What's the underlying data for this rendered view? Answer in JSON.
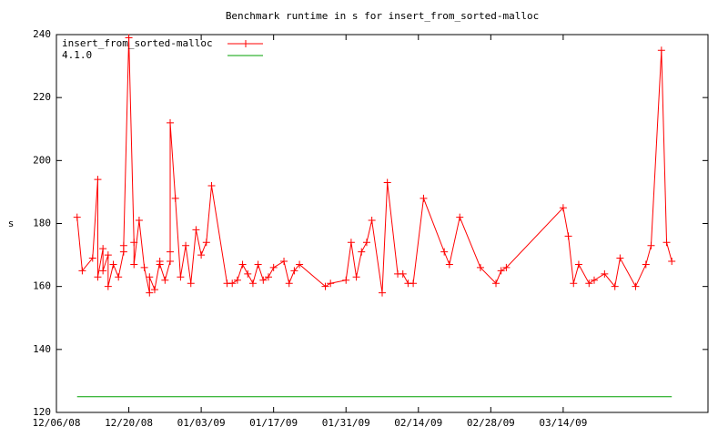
{
  "chart_data": {
    "type": "line",
    "title": "Benchmark runtime in s for insert_from_sorted-malloc",
    "y_label": "s",
    "x": [
      "2008-12-10",
      "2008-12-11",
      "2008-12-13",
      "2008-12-14",
      "2008-12-14",
      "2008-12-15",
      "2008-12-15",
      "2008-12-16",
      "2008-12-16",
      "2008-12-17",
      "2008-12-18",
      "2008-12-19",
      "2008-12-19",
      "2008-12-20",
      "2008-12-21",
      "2008-12-21",
      "2008-12-22",
      "2008-12-23",
      "2008-12-24",
      "2008-12-24",
      "2008-12-25",
      "2008-12-26",
      "2008-12-26",
      "2008-12-27",
      "2008-12-28",
      "2008-12-28",
      "2008-12-28",
      "2008-12-29",
      "2008-12-30",
      "2008-12-31",
      "2009-01-01",
      "2009-01-02",
      "2009-01-03",
      "2009-01-04",
      "2009-01-05",
      "2009-01-08",
      "2009-01-09",
      "2009-01-10",
      "2009-01-11",
      "2009-01-12",
      "2009-01-13",
      "2009-01-14",
      "2009-01-15",
      "2009-01-16",
      "2009-01-17",
      "2009-01-19",
      "2009-01-20",
      "2009-01-21",
      "2009-01-22",
      "2009-01-27",
      "2009-01-28",
      "2009-01-31",
      "2009-02-01",
      "2009-02-02",
      "2009-02-03",
      "2009-02-04",
      "2009-02-05",
      "2009-02-07",
      "2009-02-08",
      "2009-02-10",
      "2009-02-11",
      "2009-02-12",
      "2009-02-13",
      "2009-02-15",
      "2009-02-19",
      "2009-02-20",
      "2009-02-22",
      "2009-02-26",
      "2009-03-01",
      "2009-03-02",
      "2009-03-03",
      "2009-03-14",
      "2009-03-15",
      "2009-03-16",
      "2009-03-17",
      "2009-03-19",
      "2009-03-20",
      "2009-03-22",
      "2009-03-24",
      "2009-03-25",
      "2009-03-28",
      "2009-03-30",
      "2009-03-31",
      "2009-04-02",
      "2009-04-03",
      "2009-04-04"
    ],
    "series": [
      {
        "name": "insert_from_sorted-malloc",
        "color": "#ff0000",
        "marker": "+",
        "values": [
          182,
          165,
          169,
          194,
          163,
          172,
          165,
          170,
          160,
          167,
          163,
          171,
          173,
          239,
          174,
          167,
          181,
          166,
          158,
          163,
          159,
          168,
          167,
          162,
          168,
          171,
          212,
          188,
          163,
          173,
          161,
          178,
          170,
          174,
          192,
          161,
          161,
          162,
          167,
          164,
          161,
          167,
          162,
          163,
          166,
          168,
          161,
          165,
          167,
          160,
          161,
          162,
          174,
          163,
          171,
          174,
          181,
          158,
          193,
          164,
          164,
          161,
          161,
          188,
          171,
          167,
          182,
          166,
          161,
          165,
          166,
          185,
          176,
          161,
          167,
          161,
          162,
          164,
          160,
          169,
          160,
          167,
          173,
          235,
          174,
          168
        ]
      },
      {
        "name": "4.1.0",
        "color": "#00a000",
        "x": [
          "2008-12-10",
          "2009-04-04"
        ],
        "values": [
          125,
          125
        ]
      }
    ],
    "xlim": [
      "2008-12-06",
      "2009-04-11"
    ],
    "xticks": [
      {
        "value": "2008-12-06",
        "label": "12/06/08"
      },
      {
        "value": "2008-12-20",
        "label": "12/20/08"
      },
      {
        "value": "2009-01-03",
        "label": "01/03/09"
      },
      {
        "value": "2009-01-17",
        "label": "01/17/09"
      },
      {
        "value": "2009-01-31",
        "label": "01/31/09"
      },
      {
        "value": "2009-02-14",
        "label": "02/14/09"
      },
      {
        "value": "2009-02-28",
        "label": "02/28/09"
      },
      {
        "value": "2009-03-14",
        "label": "03/14/09"
      }
    ],
    "ylim": [
      120,
      240
    ],
    "yticks": [
      120,
      140,
      160,
      180,
      200,
      220,
      240
    ],
    "grid": false,
    "legend": "top-left"
  }
}
